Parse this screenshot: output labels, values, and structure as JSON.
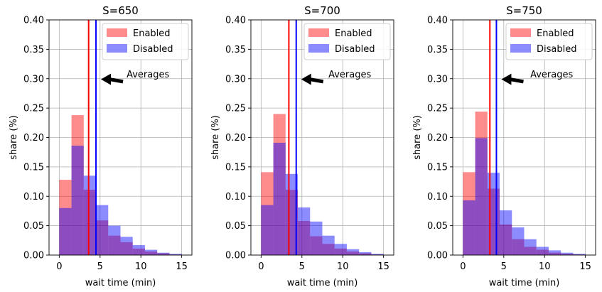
{
  "chart_data": [
    {
      "type": "bar",
      "title": "S=650",
      "xlabel": "wait time (min)",
      "ylabel": "share (%)",
      "xlim": [
        -1.25,
        16.25
      ],
      "ylim": [
        0,
        0.4
      ],
      "xticks": [
        0,
        5,
        10,
        15
      ],
      "yticks": [
        "0.00",
        "0.05",
        "0.10",
        "0.15",
        "0.20",
        "0.25",
        "0.30",
        "0.35",
        "0.40"
      ],
      "grid": true,
      "legend_position": "top-right",
      "bin_edges": [
        0,
        1.5,
        3,
        4.5,
        6,
        7.5,
        9,
        10.5,
        12,
        13.5,
        15
      ],
      "series": [
        {
          "name": "Enabled",
          "color": "#ff0000",
          "values": [
            0.128,
            0.238,
            0.111,
            0.059,
            0.033,
            0.022,
            0.011,
            0.006,
            0.003,
            0.001
          ]
        },
        {
          "name": "Disabled",
          "color": "#0000ff",
          "values": [
            0.08,
            0.186,
            0.135,
            0.085,
            0.05,
            0.031,
            0.017,
            0.009,
            0.004,
            0.002
          ]
        }
      ],
      "averages": [
        {
          "series": "Enabled",
          "x": 3.6,
          "color": "#ff0000"
        },
        {
          "series": "Disabled",
          "x": 4.5,
          "color": "#0000ff"
        }
      ],
      "annotation": {
        "text": "Averages",
        "x": 7.9,
        "y": 0.302
      }
    },
    {
      "type": "bar",
      "title": "S=700",
      "xlabel": "wait time (min)",
      "ylabel": "share (%)",
      "xlim": [
        -1.25,
        16.25
      ],
      "ylim": [
        0,
        0.4
      ],
      "xticks": [
        0,
        5,
        10,
        15
      ],
      "yticks": [
        "0.00",
        "0.05",
        "0.10",
        "0.15",
        "0.20",
        "0.25",
        "0.30",
        "0.35",
        "0.40"
      ],
      "grid": true,
      "legend_position": "top-right",
      "bin_edges": [
        0,
        1.5,
        3,
        4.5,
        6,
        7.5,
        9,
        10.5,
        12,
        13.5,
        15
      ],
      "series": [
        {
          "name": "Enabled",
          "color": "#ff0000",
          "values": [
            0.141,
            0.24,
            0.111,
            0.058,
            0.032,
            0.019,
            0.011,
            0.006,
            0.003,
            0.001
          ]
        },
        {
          "name": "Disabled",
          "color": "#0000ff",
          "values": [
            0.085,
            0.191,
            0.138,
            0.081,
            0.057,
            0.033,
            0.019,
            0.01,
            0.005,
            0.002
          ]
        }
      ],
      "averages": [
        {
          "series": "Enabled",
          "x": 3.4,
          "color": "#ff0000"
        },
        {
          "series": "Disabled",
          "x": 4.3,
          "color": "#0000ff"
        }
      ],
      "annotation": {
        "text": "Averages",
        "x": 7.9,
        "y": 0.302
      }
    },
    {
      "type": "bar",
      "title": "S=750",
      "xlabel": "wait time (min)",
      "ylabel": "share (%)",
      "xlim": [
        -1.25,
        16.25
      ],
      "ylim": [
        0,
        0.4
      ],
      "xticks": [
        0,
        5,
        10,
        15
      ],
      "yticks": [
        "0.00",
        "0.05",
        "0.10",
        "0.15",
        "0.20",
        "0.25",
        "0.30",
        "0.35",
        "0.40"
      ],
      "grid": true,
      "legend_position": "top-right",
      "bin_edges": [
        0,
        1.5,
        3,
        4.5,
        6,
        7.5,
        9,
        10.5,
        12,
        13.5,
        15
      ],
      "series": [
        {
          "name": "Enabled",
          "color": "#ff0000",
          "values": [
            0.141,
            0.244,
            0.113,
            0.052,
            0.027,
            0.014,
            0.009,
            0.004,
            0.002,
            0.001
          ]
        },
        {
          "name": "Disabled",
          "color": "#0000ff",
          "values": [
            0.093,
            0.199,
            0.14,
            0.076,
            0.047,
            0.027,
            0.014,
            0.008,
            0.004,
            0.002
          ]
        }
      ],
      "averages": [
        {
          "series": "Enabled",
          "x": 3.3,
          "color": "#ff0000"
        },
        {
          "series": "Disabled",
          "x": 4.1,
          "color": "#0000ff"
        }
      ],
      "annotation": {
        "text": "Averages",
        "x": 7.9,
        "y": 0.302
      }
    }
  ]
}
